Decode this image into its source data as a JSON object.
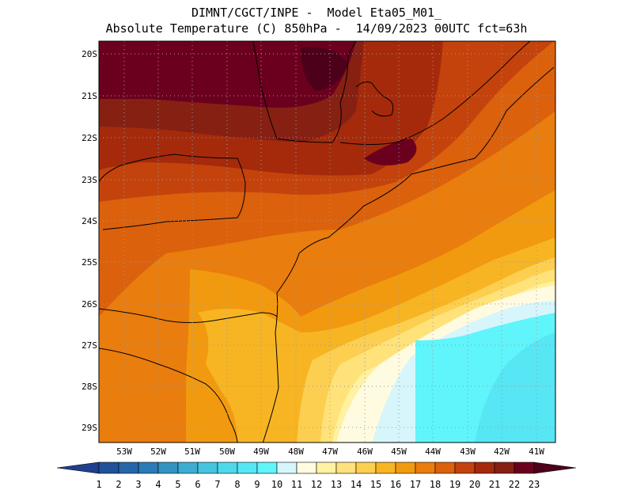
{
  "title": {
    "line1": "DIMNT/CGCT/INPE -  Model Eta05_M01_",
    "line2": "Absolute Temperature (C) 850hPa -  14/09/2023 00UTC fct=63h"
  },
  "map": {
    "lat_labels": [
      "20S",
      "21S",
      "22S",
      "23S",
      "24S",
      "25S",
      "26S",
      "27S",
      "28S",
      "29S"
    ],
    "lon_labels": [
      "53W",
      "52W",
      "51W",
      "50W",
      "49W",
      "48W",
      "47W",
      "46W",
      "45W",
      "44W",
      "43W",
      "42W",
      "41W"
    ],
    "extent": {
      "lon_min": -53.8,
      "lon_max": -40.4,
      "lat_top": -19.8,
      "lat_bottom": -29.4
    }
  },
  "colorbar": {
    "labels": [
      "1",
      "2",
      "3",
      "4",
      "5",
      "6",
      "7",
      "8",
      "9",
      "10",
      "11",
      "12",
      "13",
      "14",
      "15",
      "16",
      "17",
      "18",
      "19",
      "20",
      "21",
      "22",
      "23"
    ],
    "colors": [
      "#1f3f8f",
      "#21519b",
      "#2566ab",
      "#2a7bb7",
      "#3394c2",
      "#3cadd0",
      "#46c4de",
      "#4fd8ea",
      "#56e6f4",
      "#5ff5fb",
      "#d6f6fb",
      "#fffbe0",
      "#fff2a0",
      "#ffe27a",
      "#fdcf50",
      "#f7b523",
      "#f29a0f",
      "#e97d0d",
      "#db610d",
      "#c4430c",
      "#a52a0b",
      "#862013",
      "#6b001e",
      "#4d0019"
    ]
  }
}
